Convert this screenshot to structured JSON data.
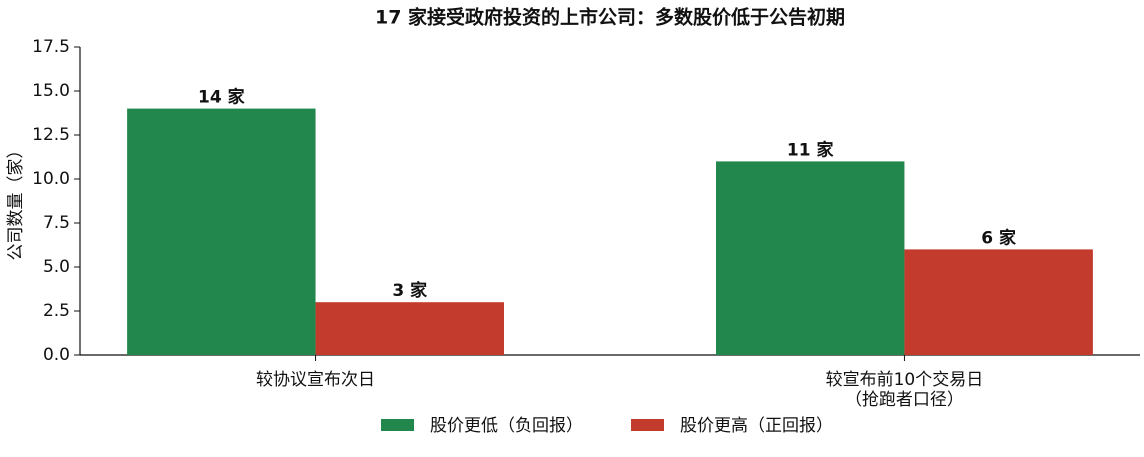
{
  "chart_data": {
    "type": "bar",
    "title": "17 家接受政府投资的上市公司：多数股价低于公告初期",
    "y_label": "公司数量（家）",
    "categories": [
      "较协议宣布次日",
      "较宣布前10个交易日\n（抢跑者口径）"
    ],
    "series": [
      {
        "name": "股价更低（负回报）",
        "color": "#22874d",
        "values": [
          14,
          11
        ],
        "value_labels": [
          "14 家",
          "11 家"
        ]
      },
      {
        "name": "股价更高（正回报）",
        "color": "#c23b2d",
        "values": [
          3,
          6
        ],
        "value_labels": [
          "3 家",
          "6 家"
        ]
      }
    ],
    "ylim": [
      0,
      17.5
    ],
    "yticks": [
      {
        "value": 0,
        "label": "0.0"
      },
      2.5,
      {
        "value": 5,
        "label": "5.0"
      },
      7.5,
      {
        "value": 10,
        "label": "10.0"
      },
      12.5,
      {
        "value": 15,
        "label": "15.0"
      },
      17.5
    ],
    "legend": "bottom"
  }
}
